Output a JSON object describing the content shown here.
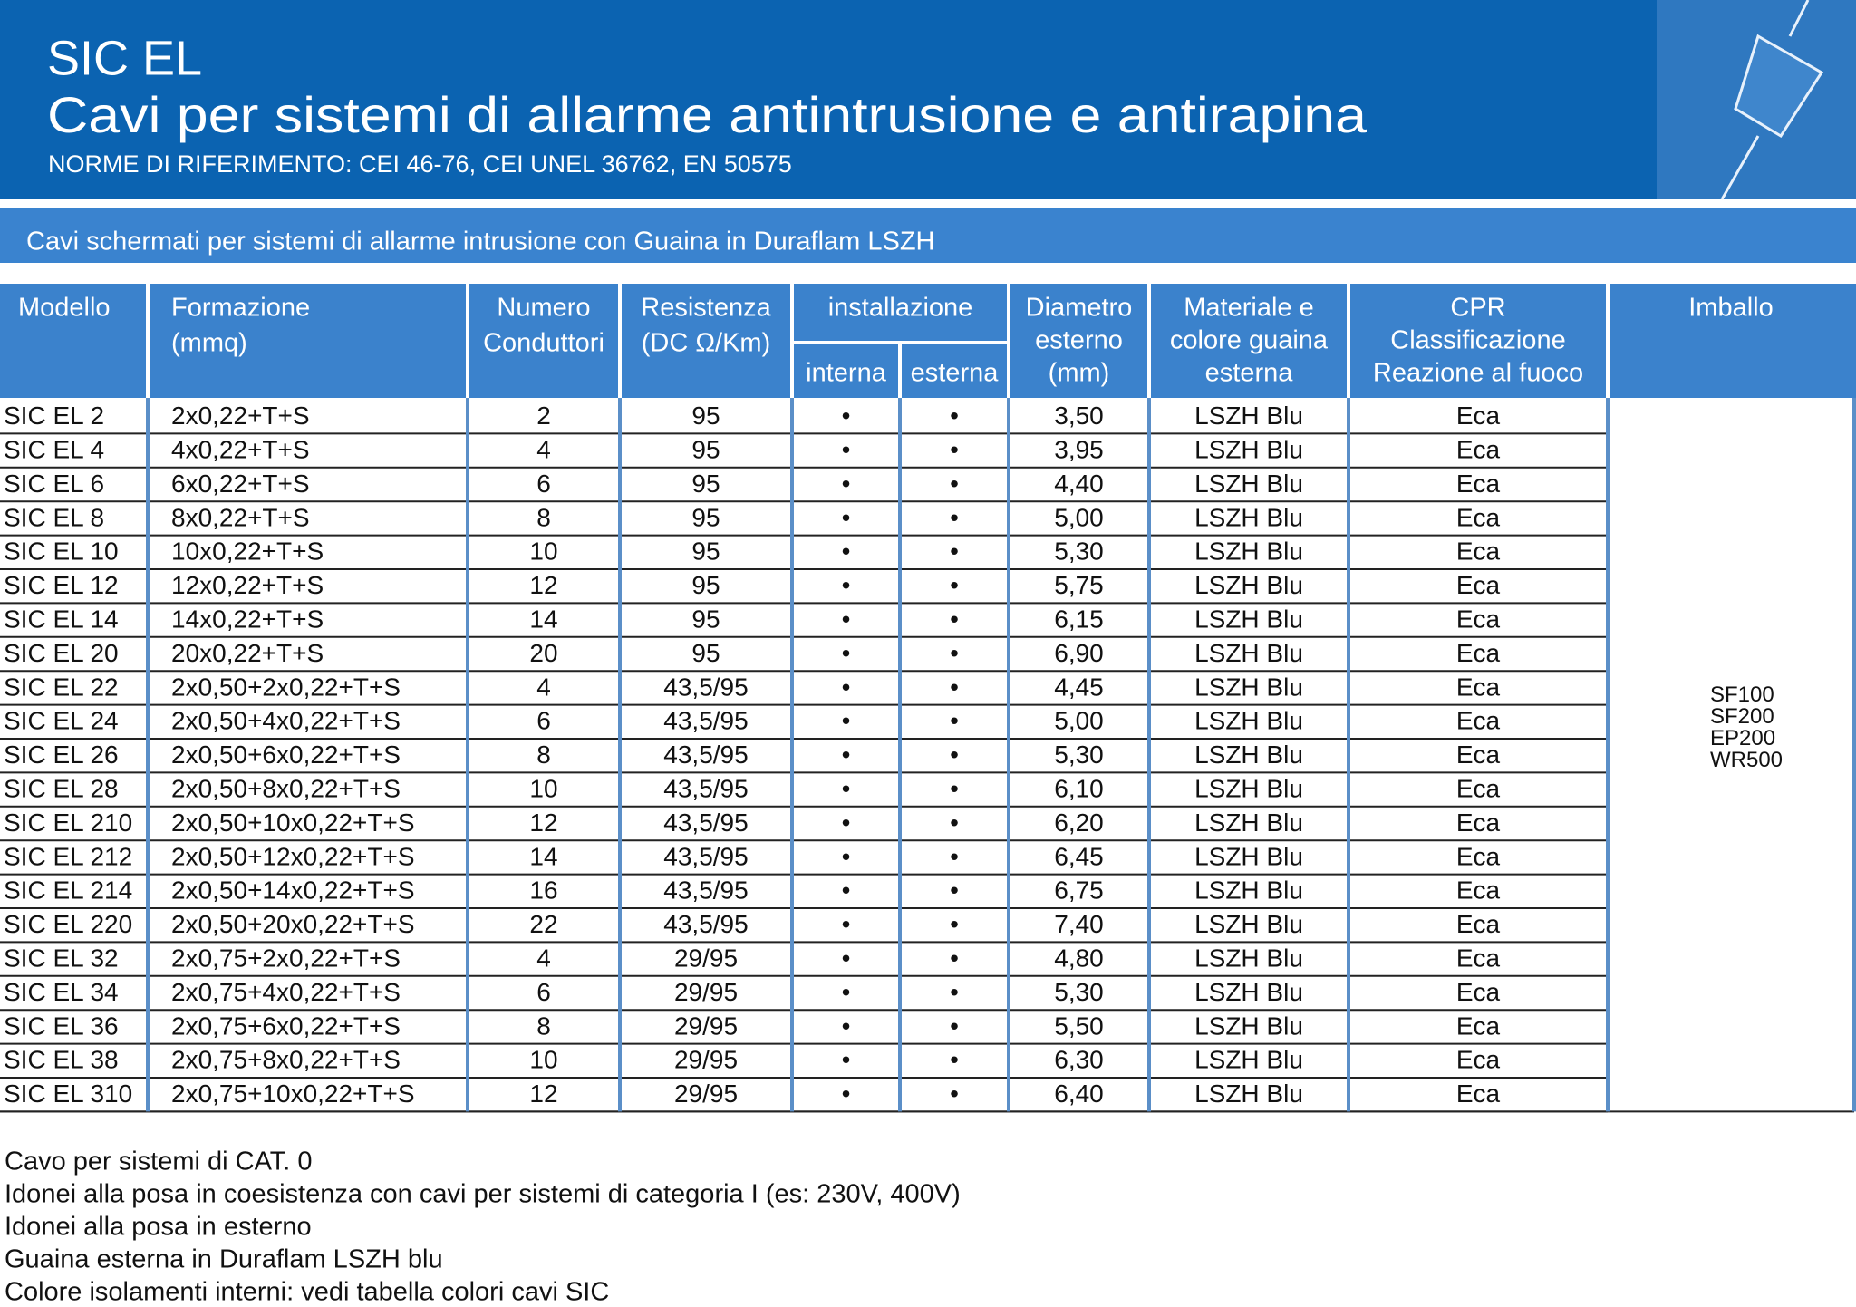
{
  "header": {
    "title": "SIC EL",
    "subtitle": "Cavi per sistemi di allarme antintrusione e antirapina",
    "norms": "NORME DI RIFERIMENTO: CEI 46-76, CEI UNEL 36762, EN 50575"
  },
  "section": {
    "title": "Cavi schermati per sistemi di allarme intrusione con Guaina in Duraflam LSZH"
  },
  "table": {
    "head": [
      {
        "lines": [
          "Modello"
        ]
      },
      {
        "lines": [
          "Formazione",
          "(mmq)"
        ]
      },
      {
        "lines": [
          "Numero",
          "Conduttori"
        ]
      },
      {
        "lines": [
          "Resistenza",
          "(DC Ω/Km)"
        ]
      },
      {
        "label": "installazione",
        "sub": [
          "interna",
          "esterna"
        ]
      },
      {
        "lines": [
          "Diametro",
          "esterno",
          "(mm)"
        ]
      },
      {
        "lines": [
          "Materiale e",
          "colore guaina",
          "esterna"
        ]
      },
      {
        "lines": [
          "CPR",
          "Classificazione",
          "Reazione al fuoco"
        ]
      },
      {
        "lines": [
          "Imballo"
        ]
      }
    ],
    "rows": [
      [
        "SIC EL 2",
        "2x0,22+T+S",
        "2",
        "95",
        "•",
        "•",
        "3,50",
        "LSZH Blu",
        "Eca"
      ],
      [
        "SIC EL 4",
        "4x0,22+T+S",
        "4",
        "95",
        "•",
        "•",
        "3,95",
        "LSZH Blu",
        "Eca"
      ],
      [
        "SIC EL 6",
        "6x0,22+T+S",
        "6",
        "95",
        "•",
        "•",
        "4,40",
        "LSZH Blu",
        "Eca"
      ],
      [
        "SIC EL 8",
        "8x0,22+T+S",
        "8",
        "95",
        "•",
        "•",
        "5,00",
        "LSZH Blu",
        "Eca"
      ],
      [
        "SIC EL 10",
        "10x0,22+T+S",
        "10",
        "95",
        "•",
        "•",
        "5,30",
        "LSZH Blu",
        "Eca"
      ],
      [
        "SIC EL 12",
        "12x0,22+T+S",
        "12",
        "95",
        "•",
        "•",
        "5,75",
        "LSZH Blu",
        "Eca"
      ],
      [
        "SIC EL 14",
        "14x0,22+T+S",
        "14",
        "95",
        "•",
        "•",
        "6,15",
        "LSZH Blu",
        "Eca"
      ],
      [
        "SIC EL 20",
        "20x0,22+T+S",
        "20",
        "95",
        "•",
        "•",
        "6,90",
        "LSZH Blu",
        "Eca"
      ],
      [
        "SIC EL 22",
        "2x0,50+2x0,22+T+S",
        "4",
        "43,5/95",
        "•",
        "•",
        "4,45",
        "LSZH Blu",
        "Eca"
      ],
      [
        "SIC EL 24",
        "2x0,50+4x0,22+T+S",
        "6",
        "43,5/95",
        "•",
        "•",
        "5,00",
        "LSZH Blu",
        "Eca"
      ],
      [
        "SIC EL 26",
        "2x0,50+6x0,22+T+S",
        "8",
        "43,5/95",
        "•",
        "•",
        "5,30",
        "LSZH Blu",
        "Eca"
      ],
      [
        "SIC EL 28",
        "2x0,50+8x0,22+T+S",
        "10",
        "43,5/95",
        "•",
        "•",
        "6,10",
        "LSZH Blu",
        "Eca"
      ],
      [
        "SIC EL 210",
        "2x0,50+10x0,22+T+S",
        "12",
        "43,5/95",
        "•",
        "•",
        "6,20",
        "LSZH Blu",
        "Eca"
      ],
      [
        "SIC EL 212",
        "2x0,50+12x0,22+T+S",
        "14",
        "43,5/95",
        "•",
        "•",
        "6,45",
        "LSZH Blu",
        "Eca"
      ],
      [
        "SIC EL 214",
        "2x0,50+14x0,22+T+S",
        "16",
        "43,5/95",
        "•",
        "•",
        "6,75",
        "LSZH Blu",
        "Eca"
      ],
      [
        "SIC EL 220",
        "2x0,50+20x0,22+T+S",
        "22",
        "43,5/95",
        "•",
        "•",
        "7,40",
        "LSZH Blu",
        "Eca"
      ],
      [
        "SIC EL 32",
        "2x0,75+2x0,22+T+S",
        "4",
        "29/95",
        "•",
        "•",
        "4,80",
        "LSZH Blu",
        "Eca"
      ],
      [
        "SIC EL 34",
        "2x0,75+4x0,22+T+S",
        "6",
        "29/95",
        "•",
        "•",
        "5,30",
        "LSZH Blu",
        "Eca"
      ],
      [
        "SIC EL 36",
        "2x0,75+6x0,22+T+S",
        "8",
        "29/95",
        "•",
        "•",
        "5,50",
        "LSZH Blu",
        "Eca"
      ],
      [
        "SIC EL 38",
        "2x0,75+8x0,22+T+S",
        "10",
        "29/95",
        "•",
        "•",
        "6,30",
        "LSZH Blu",
        "Eca"
      ],
      [
        "SIC EL 310",
        "2x0,75+10x0,22+T+S",
        "12",
        "29/95",
        "•",
        "•",
        "6,40",
        "LSZH Blu",
        "Eca"
      ]
    ],
    "packaging": [
      "SF100",
      "SF200",
      "EP200",
      "WR500"
    ]
  },
  "notes": [
    "Cavo per sistemi di CAT. 0",
    "Idonei alla posa in coesistenza con cavi per sistemi di categoria I (es: 230V, 400V)",
    "Idonei alla posa in esterno",
    "Guaina esterna in Duraflam LSZH blu",
    "Colore isolamenti interni: vedi tabella colori cavi SIC"
  ]
}
